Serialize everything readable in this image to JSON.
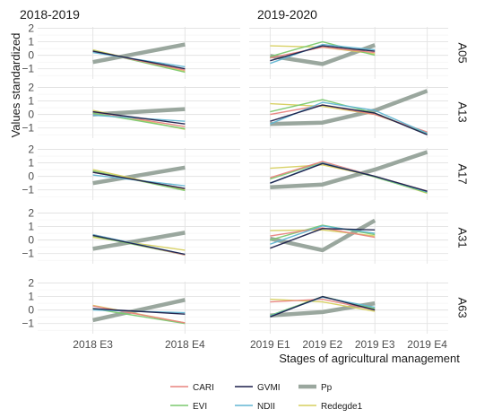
{
  "chart_data": {
    "type": "line",
    "ylabel": "Values standardized",
    "xlabel": "Stages of agricultural management",
    "ylim": [
      -1.75,
      2.1
    ],
    "yticks": [
      -1,
      0,
      1,
      2
    ],
    "grid": true,
    "legend_position": "bottom",
    "columns": [
      {
        "title": "2018-2019",
        "categories": [
          "2018 E3",
          "2018 E4"
        ],
        "xrange": [
          0.4,
          2.6
        ]
      },
      {
        "title": "2019-2020",
        "categories": [
          "2019 E1",
          "2019 E2",
          "2019 E3",
          "2019 E4"
        ],
        "xrange": [
          0.6,
          4.4
        ]
      }
    ],
    "rows": [
      "A05",
      "A13",
      "A17",
      "A31",
      "A63"
    ],
    "legend": [
      {
        "key": "CARI",
        "label": "CARI",
        "color": "#e8837e",
        "width": 1.4
      },
      {
        "key": "GVMI",
        "label": "GVMI",
        "color": "#1b1f4a",
        "width": 1.4
      },
      {
        "key": "Pp",
        "label": "Pp",
        "color": "#9aa79e",
        "width": 4.5
      },
      {
        "key": "EVI",
        "label": "EVI",
        "color": "#7bc96f",
        "width": 1.4
      },
      {
        "key": "NDII",
        "label": "NDII",
        "color": "#62b6d3",
        "width": 1.4
      },
      {
        "key": "Redegde1",
        "label": "Redegde1",
        "color": "#d6cf5e",
        "width": 1.4
      }
    ],
    "panels": [
      {
        "row": "A05",
        "col": 0,
        "series": {
          "CARI": [
            0.3,
            -1.1
          ],
          "GVMI": [
            0.3,
            -1.0
          ],
          "EVI": [
            0.35,
            -1.25
          ],
          "NDII": [
            0.2,
            -0.85
          ],
          "Redegde1": [
            0.4,
            -1.2
          ],
          "Pp": [
            -0.5,
            0.8
          ]
        }
      },
      {
        "row": "A05",
        "col": 1,
        "series": {
          "CARI": [
            -0.2,
            0.6,
            0.2
          ],
          "GVMI": [
            -0.4,
            0.7,
            0.3
          ],
          "EVI": [
            -0.1,
            1.0,
            0.0
          ],
          "NDII": [
            -0.6,
            0.8,
            0.4
          ],
          "Redegde1": [
            0.7,
            0.6,
            0.1
          ],
          "Pp": [
            -0.05,
            -0.65,
            0.75
          ]
        }
      },
      {
        "row": "A13",
        "col": 0,
        "series": {
          "CARI": [
            0.2,
            -0.9
          ],
          "GVMI": [
            0.2,
            -0.7
          ],
          "EVI": [
            0.1,
            -1.05
          ],
          "NDII": [
            -0.05,
            -0.5
          ],
          "Redegde1": [
            0.3,
            -1.1
          ],
          "Pp": [
            0.0,
            0.4
          ]
        }
      },
      {
        "row": "A13",
        "col": 1,
        "series": {
          "CARI": [
            0.0,
            0.7,
            0.0,
            -1.3
          ],
          "GVMI": [
            -0.5,
            0.7,
            0.1,
            -1.5
          ],
          "EVI": [
            0.2,
            1.1,
            0.1,
            -1.45
          ],
          "NDII": [
            -0.7,
            0.9,
            0.3,
            -1.4
          ],
          "Redegde1": [
            0.8,
            0.6,
            0.0,
            -1.35
          ],
          "Pp": [
            -0.7,
            -0.6,
            0.3,
            1.75
          ]
        }
      },
      {
        "row": "A17",
        "col": 0,
        "series": {
          "CARI": [
            0.3,
            -0.9
          ],
          "GVMI": [
            0.3,
            -0.9
          ],
          "EVI": [
            0.4,
            -1.05
          ],
          "NDII": [
            0.1,
            -0.7
          ],
          "Redegde1": [
            0.5,
            -1.0
          ],
          "Pp": [
            -0.5,
            0.65
          ]
        }
      },
      {
        "row": "A17",
        "col": 1,
        "series": {
          "CARI": [
            -0.1,
            1.1,
            0.0,
            -1.1
          ],
          "GVMI": [
            -0.5,
            0.95,
            0.0,
            -1.1
          ],
          "EVI": [
            -0.2,
            1.05,
            -0.05,
            -1.2
          ],
          "NDII": [
            -0.5,
            1.0,
            0.0,
            -1.15
          ],
          "Redegde1": [
            0.6,
            0.85,
            0.0,
            -1.25
          ],
          "Pp": [
            -0.8,
            -0.6,
            0.5,
            1.8
          ]
        }
      },
      {
        "row": "A31",
        "col": 0,
        "series": {
          "CARI": [
            0.4,
            -1.1
          ],
          "GVMI": [
            0.35,
            -1.05
          ],
          "EVI": [
            0.3,
            -1.1
          ],
          "NDII": [
            0.4,
            -1.05
          ],
          "Redegde1": [
            0.2,
            -0.75
          ],
          "Pp": [
            -0.65,
            0.55
          ]
        }
      },
      {
        "row": "A31",
        "col": 1,
        "series": {
          "CARI": [
            0.3,
            0.9,
            0.2
          ],
          "GVMI": [
            -0.6,
            0.85,
            0.75
          ],
          "EVI": [
            0.0,
            1.1,
            0.4
          ],
          "NDII": [
            -0.3,
            1.05,
            0.5
          ],
          "Redegde1": [
            0.7,
            0.75,
            0.3
          ],
          "Pp": [
            0.1,
            -0.75,
            1.45
          ]
        }
      },
      {
        "row": "A63",
        "col": 0,
        "series": {
          "CARI": [
            0.3,
            -0.95
          ],
          "GVMI": [
            0.1,
            -0.3
          ],
          "EVI": [
            0.1,
            -1.0
          ],
          "NDII": [
            0.0,
            -0.2
          ],
          "Redegde1": [
            0.35,
            -0.95
          ],
          "Pp": [
            -0.75,
            0.75
          ]
        }
      },
      {
        "row": "A63",
        "col": 1,
        "series": {
          "CARI": [
            0.6,
            0.8,
            0.0
          ],
          "GVMI": [
            -0.5,
            1.0,
            0.0
          ],
          "EVI": [
            -0.4,
            1.0,
            0.1
          ],
          "NDII": [
            -0.45,
            0.95,
            0.2
          ],
          "Redegde1": [
            0.8,
            0.6,
            -0.1
          ],
          "Pp": [
            -0.4,
            -0.15,
            0.5
          ]
        }
      }
    ]
  }
}
